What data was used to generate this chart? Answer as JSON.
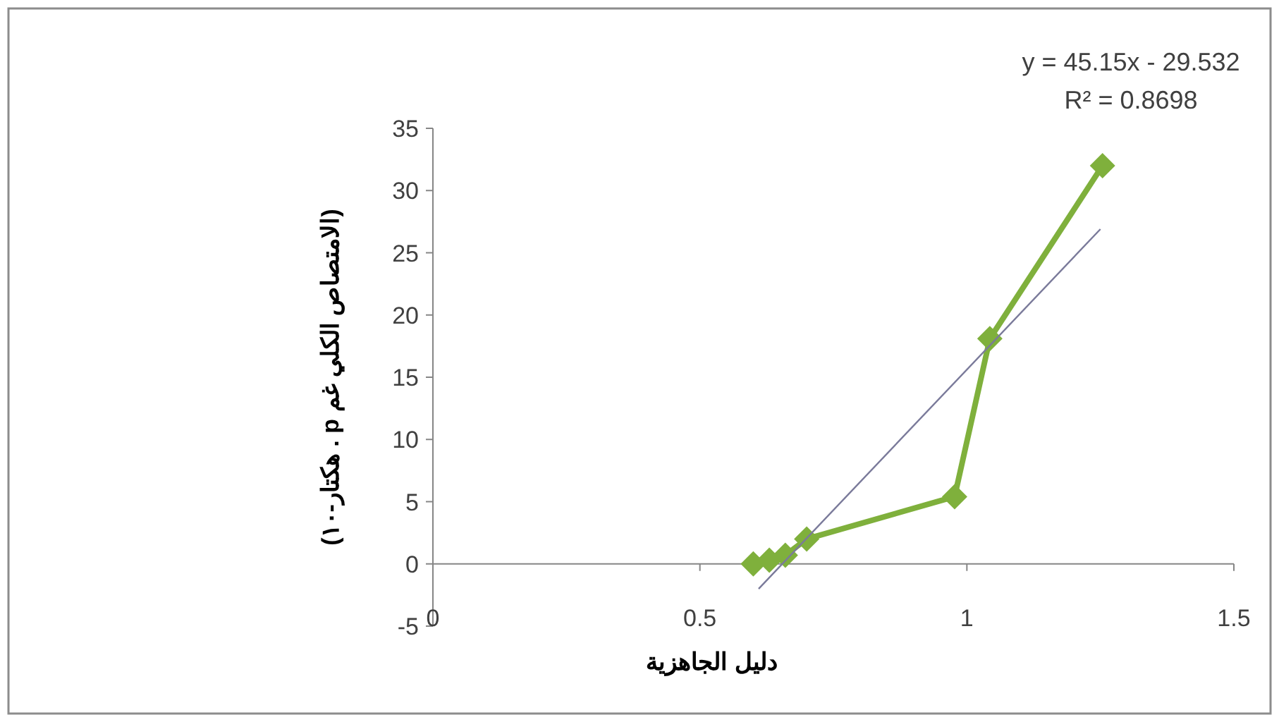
{
  "chart_data": {
    "type": "line",
    "xlabel": "دليل الجاهزية",
    "ylabel": "(الامتصاص الكلي غم p . هكتار-١٠)",
    "xlim": [
      0,
      1.5
    ],
    "xticks": [
      0,
      0.5,
      1,
      1.5
    ],
    "ylim": [
      -5,
      35
    ],
    "yticks": [
      -5,
      0,
      5,
      10,
      15,
      20,
      25,
      30,
      35
    ],
    "series": [
      {
        "type": "line",
        "marker": "diamond",
        "color": "#7fb03c",
        "x": [
          0.6,
          0.63,
          0.66,
          0.7,
          0.977,
          1.043,
          1.254
        ],
        "values": [
          0,
          0.3,
          0.7,
          2.0,
          5.4,
          18.1,
          32.0
        ]
      },
      {
        "type": "line",
        "marker": "none",
        "color": "#7a7a9a",
        "x": [
          0.61,
          1.25
        ],
        "values": [
          -2.0,
          26.9
        ]
      }
    ],
    "annotations": [
      "y = 45.15x - 29.532",
      "R² = 0.8698"
    ]
  }
}
